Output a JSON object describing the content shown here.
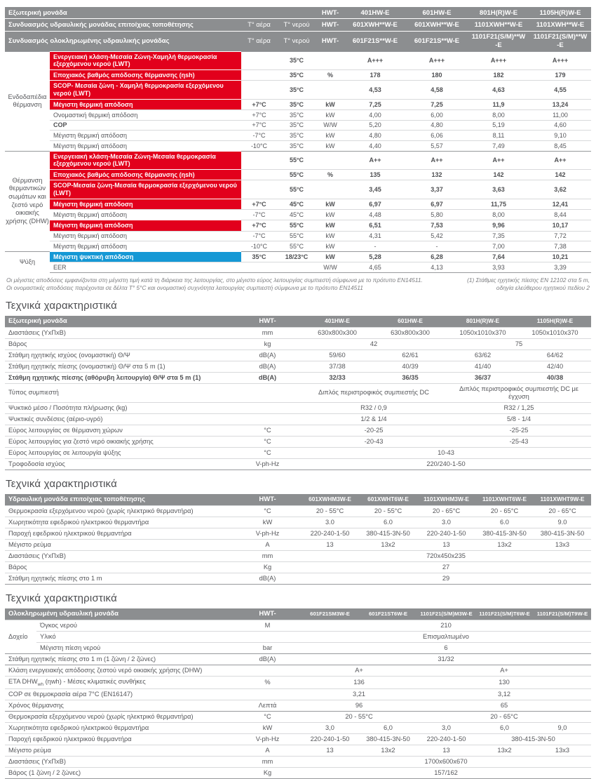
{
  "colors": {
    "red": "#e2001c",
    "blue": "#1598d5",
    "hdr": "#8c8e90"
  },
  "main_table": {
    "header_rows": [
      {
        "label": "Εξωτερική μονάδα",
        "t_air": "",
        "t_water": "",
        "brand": "HWT-",
        "models": [
          "401HW-E",
          "601HW-E",
          "801H(R)W-E",
          "1105H(R)W-E"
        ]
      },
      {
        "label": "Συνδυασμός υδραυλικής μονάδας επιτοίχιας τοποθέτησης",
        "t_air": "Τ° αέρα",
        "t_water": "Τ° νερού",
        "brand": "HWT-",
        "models": [
          "601XWH**W-E",
          "601XWH**W-E",
          "1101XWH**W-E",
          "1101XWH**W-E"
        ]
      },
      {
        "label": "Συνδυασμός ολοκληρωμένης υδραυλικής μονάδας",
        "t_air": "Τ° αέρα",
        "t_water": "Τ° νερού",
        "brand": "HWT-",
        "models": [
          "601F21S**W-E",
          "601F21S**W-E",
          "1101F21(S/M)**W-E",
          "1101F21(S/M)**W-E"
        ]
      }
    ],
    "sections": [
      {
        "name": "Ενδοδαπέδια θέρμανση",
        "rows": [
          {
            "style": "red",
            "attr": "Ενεργειακή κλάση-Μεσαία Ζώνη-Χαμηλή θερμοκρασία εξερχόμενου νερού (LWT)",
            "t_air": "",
            "t_water": "35°C",
            "unit": "",
            "values": [
              "A+++",
              "A+++",
              "A+++",
              "A+++"
            ]
          },
          {
            "style": "red",
            "attr": "Εποχιακός βαθμός απόδοσης θέρμανσης (ηsh)",
            "t_air": "",
            "t_water": "35°C",
            "unit": "%",
            "values": [
              "178",
              "180",
              "182",
              "179"
            ]
          },
          {
            "style": "red",
            "attr": "SCOP- Μεσαία ζώνη - Χαμηλή θερμοκρασία εξερχόμενου νερού (LWT)",
            "t_air": "",
            "t_water": "35°C",
            "unit": "",
            "values": [
              "4,53",
              "4,58",
              "4,63",
              "4,55"
            ]
          },
          {
            "style": "red",
            "attr": "Μέγιστη θερμική απόδοση",
            "t_air": "+7°C",
            "t_water": "35°C",
            "unit": "kW",
            "values": [
              "7,25",
              "7,25",
              "11,9",
              "13,24"
            ]
          },
          {
            "attr": "Ονομαστική θερμική απόδοση",
            "t_air": "+7°C",
            "t_water": "35°C",
            "unit": "kW",
            "values": [
              "4,00",
              "6,00",
              "8,00",
              "11,00"
            ]
          },
          {
            "attr": "COP",
            "bold": true,
            "t_air": "+7°C",
            "t_water": "35°C",
            "unit": "W/W",
            "values": [
              "5,20",
              "4,80",
              "5,19",
              "4,60"
            ]
          },
          {
            "attr": "Μέγιστη θερμική απόδοση",
            "t_air": "-7°C",
            "t_water": "35°C",
            "unit": "kW",
            "values": [
              "4,80",
              "6,06",
              "8,11",
              "9,10"
            ]
          },
          {
            "attr": "Μέγιστη θερμική απόδοση",
            "t_air": "-10°C",
            "t_water": "35°C",
            "unit": "kW",
            "values": [
              "4,40",
              "5,57",
              "7,49",
              "8,45"
            ]
          }
        ]
      },
      {
        "name": "Θέρμανση θερμαντικών σωμάτων και ζεστό νερό οικιακής χρήσης (DHW)",
        "rows": [
          {
            "style": "red",
            "attr": "Ενεργειακή κλάση-Μεσαία Ζώνη-Μεσαία θερμοκρασία εξερχόμενου νερού (LWT)",
            "t_air": "",
            "t_water": "55°C",
            "unit": "",
            "values": [
              "A++",
              "A++",
              "A++",
              "A++"
            ]
          },
          {
            "style": "red",
            "attr": "Εποχιακός βαθμός απόδοσης θέρμανσης (ηsh)",
            "t_air": "",
            "t_water": "55°C",
            "unit": "%",
            "values": [
              "135",
              "132",
              "142",
              "142"
            ]
          },
          {
            "style": "red",
            "attr": "SCOP-Μεσαία ζώνη-Μεσαία θερμοκρασία εξερχόμενου νερού (LWT)",
            "t_air": "",
            "t_water": "55°C",
            "unit": "",
            "values": [
              "3,45",
              "3,37",
              "3,63",
              "3,62"
            ]
          },
          {
            "style": "red",
            "attr": "Μέγιστη θερμική απόδοση",
            "t_air": "+7°C",
            "t_water": "45°C",
            "unit": "kW",
            "values": [
              "6,97",
              "6,97",
              "11,75",
              "12,41"
            ]
          },
          {
            "attr": "Μέγιστη θερμική απόδοση",
            "t_air": "-7°C",
            "t_water": "45°C",
            "unit": "kW",
            "values": [
              "4,48",
              "5,80",
              "8,00",
              "8,44"
            ]
          },
          {
            "style": "red",
            "attr": "Μέγιστη θερμική απόδοση",
            "t_air": "+7°C",
            "t_water": "55°C",
            "unit": "kW",
            "values": [
              "6,51",
              "7,53",
              "9,96",
              "10,17"
            ]
          },
          {
            "attr": "Μέγιστη θερμική απόδοση",
            "t_air": "-7°C",
            "t_water": "55°C",
            "unit": "kW",
            "values": [
              "4,31",
              "5,42",
              "7,35",
              "7,72"
            ]
          },
          {
            "attr": "Μέγιστη θερμική απόδοση",
            "t_air": "-10°C",
            "t_water": "55°C",
            "unit": "kW",
            "values": [
              "-",
              "-",
              "7,00",
              "7,38"
            ]
          }
        ]
      },
      {
        "name": "Ψύξη",
        "rows": [
          {
            "style": "blue",
            "attr": "Μέγιστη ψυκτική απόδοση",
            "t_air": "35°C",
            "t_water": "18/23°C",
            "unit": "kW",
            "values": [
              "5,28",
              "6,28",
              "7,64",
              "10,21"
            ]
          },
          {
            "attr": "EER",
            "t_air": "",
            "t_water": "",
            "unit": "W/W",
            "values": [
              "4,65",
              "4,13",
              "3,93",
              "3,39"
            ]
          }
        ]
      }
    ]
  },
  "footnotes": {
    "left": "Οι μέγιστες αποδόσεις εμφανίζονται στη μέγιστη τιμή κατά τη διάρκεια της λειτουργίας, στο μέγιστο εύρος λειτουργίας συμπιεστή σύμφωνα με το πρότυπο EN14511. Οι ονομαστικές αποδόσεις παρέχονται σε δέλτα Τ° 5°C και ονομαστική συχνότητα λειτουργίας συμπιεστή σύμφωνα με το πρότυπο EN14511",
    "right": "(1) Στάθμες ηχητικής πίεσης EN 12102 στα 5 m,\nοδηγία ελεύθερου ηχητικού πεδίου 2"
  },
  "tech_tables": [
    {
      "heading": "Τεχνικά χαρακτηριστικά",
      "title": "Εξωτερική μονάδα",
      "brand": "HWT-",
      "models": [
        "401HW-E",
        "601HW-E",
        "801H(R)W-E",
        "1105H(R)W-E"
      ],
      "rows": [
        {
          "label": "Διαστάσεις (ΥxΠxΒ)",
          "unit": "mm",
          "cells": [
            "630x800x300",
            "630x800x300",
            "1050x1010x370",
            "1050x1010x370"
          ]
        },
        {
          "label": "Βάρος",
          "unit": "kg",
          "cells": [
            {
              "t": "42",
              "s": 2
            },
            {
              "t": "75",
              "s": 2
            }
          ]
        },
        {
          "label": "Στάθμη ηχητικής ισχύος (ονομαστική) Θ/Ψ",
          "unit": "dB(A)",
          "cells": [
            "59/60",
            "62/61",
            "63/62",
            "64/62"
          ]
        },
        {
          "label": "Στάθμη ηχητικής πίεσης (ονομαστική) Θ/Ψ στα 5 m (1)",
          "unit": "dB(A)",
          "cells": [
            "37/38",
            "40/39",
            "41/40",
            "42/40"
          ]
        },
        {
          "label": "Στάθμη ηχητικής πίεσης (αθόρυβη λειτουργία) Θ/Ψ στα 5 m (1)",
          "unit": "dB(A)",
          "bold": true,
          "cells": [
            "32/33",
            "36/35",
            "36/37",
            "40/38"
          ]
        },
        {
          "label": "Τύπος συμπιεστή",
          "unit": "",
          "cells": [
            {
              "t": "Διπλός περιστροφικός συμπιεστής DC",
              "s": 2
            },
            {
              "t": "Διπλός περιστροφικός συμπιεστής DC με έγχυση",
              "s": 2
            }
          ]
        },
        {
          "label": "Ψυκτικό μέσο / Ποσότητα πλήρωσης (kg)",
          "unit": "",
          "cells": [
            {
              "t": "R32 / 0,9",
              "s": 2
            },
            {
              "t": "R32 / 1,25",
              "s": 2
            }
          ]
        },
        {
          "label": "Ψυκτικές συνδέσεις (αέριο-υγρό)",
          "unit": "",
          "cells": [
            {
              "t": "1/2 & 1/4",
              "s": 2
            },
            {
              "t": "5/8 - 1/4",
              "s": 2
            }
          ]
        },
        {
          "label": "Εύρος λειτουργίας σε θέρμανση χώρων",
          "unit": "°C",
          "cells": [
            {
              "t": "-20-25",
              "s": 2
            },
            {
              "t": "-25-25",
              "s": 2
            }
          ]
        },
        {
          "label": "Εύρος λειτουργίας για ζεστό νερό οικιακής χρήσης",
          "unit": "°C",
          "cells": [
            {
              "t": "-20-43",
              "s": 2
            },
            {
              "t": "-25-43",
              "s": 2
            }
          ]
        },
        {
          "label": "Εύρος λειτουργίας σε λειτουργία ψύξης",
          "unit": "°C",
          "cells": [
            {
              "t": "10-43",
              "s": 4
            }
          ]
        },
        {
          "label": "Τροφοδοσία ισχύος",
          "unit": "V-ph-Hz",
          "cells": [
            {
              "t": "220/240-1-50",
              "s": 4
            }
          ]
        }
      ]
    },
    {
      "heading": "Τεχνικά χαρακτηριστικά",
      "title": "Υδραυλική μονάδα επιτοίχιας τοποθέτησης",
      "brand": "HWT-",
      "models": [
        "601XWHM3W-E",
        "601XWHT6W-E",
        "1101XWHM3W-E",
        "1101XWHT6W-E",
        "1101XWHT9W-E"
      ],
      "rows": [
        {
          "label": "Θερμοκρασία εξερχόμενου νερού (χωρίς ηλεκτρικό θερμαντήρα)",
          "unit": "°C",
          "cells": [
            "20 - 55°C",
            "20 - 55°C",
            "20 - 65°C",
            "20 - 65°C",
            "20 - 65°C"
          ]
        },
        {
          "label": "Χωρητικότητα εφεδρικού ηλεκτρικού θερμαντήρα",
          "unit": "kW",
          "cells": [
            "3.0",
            "6.0",
            "3.0",
            "6.0",
            "9.0"
          ]
        },
        {
          "label": "Παροχή εφεδρικού ηλεκτρικού θερμαντήρα",
          "unit": "V-ph-Hz",
          "cells": [
            "220-240-1-50",
            "380-415-3N-50",
            "220-240-1-50",
            "380-415-3N-50",
            "380-415-3N-50"
          ]
        },
        {
          "label": "Μέγιστο ρεύμα",
          "unit": "A",
          "cells": [
            "13",
            "13x2",
            "13",
            "13x2",
            "13x3"
          ]
        },
        {
          "label": "Διαστάσεις (ΥxΠxΒ)",
          "unit": "mm",
          "cells": [
            {
              "t": "720x450x235",
              "s": 5
            }
          ]
        },
        {
          "label": "Βάρος",
          "unit": "Kg",
          "cells": [
            {
              "t": "27",
              "s": 5
            }
          ]
        },
        {
          "label": "Στάθμη ηχητικής πίεσης στο 1 m",
          "unit": "dB(A)",
          "cells": [
            {
              "t": "29",
              "s": 5
            }
          ]
        }
      ]
    },
    {
      "heading": "Τεχνικά χαρακτηριστικά",
      "title": "Ολοκληρωμένη υδραυλική μονάδα",
      "brand": "HWT-",
      "models": [
        "601F21SM3W-E",
        "601F21ST6W-E",
        "1101F21(S/M)M3W-E",
        "1101F21(S/M)T6W-E",
        "1101F21(S/M)T9W-E"
      ],
      "rows": [
        {
          "group": "Δοχείο",
          "group_rows": 3,
          "label": "Όγκος νερού",
          "unit": "M",
          "cells": [
            {
              "t": "210",
              "s": 5
            }
          ]
        },
        {
          "in_group": true,
          "label": "Υλικό",
          "unit": "",
          "cells": [
            {
              "t": "Επισμαλτωμένο",
              "s": 5
            }
          ]
        },
        {
          "in_group": true,
          "label": "Μέγιστη πίεση νερού",
          "unit": "bar",
          "cells": [
            {
              "t": "6",
              "s": 5
            }
          ]
        },
        {
          "divider": true,
          "label": "Στάθμη ηχητικής πίεσης στο 1 m (1 ζώνη / 2 ζώνες)",
          "unit": "dB(A)",
          "cells": [
            {
              "t": "31/32",
              "s": 5
            }
          ]
        },
        {
          "divider": true,
          "label": "Κλάση ενεργειακής απόδοσης ζεστού νερό οικιακής χρήσης (DHW)",
          "unit": "",
          "cells": [
            {
              "t": "A+",
              "s": 2
            },
            {
              "t": "A+",
              "s": 3
            }
          ]
        },
        {
          "label": "ETA DHWwh (ηwh) - Μέσες κλιματικές συνθήκες",
          "label_parts": {
            "pre": "ETA DHW",
            "sub": "wh",
            "post": " (ηwh) - Μέσες κλιματικές συνθήκες"
          },
          "unit": "%",
          "cells": [
            {
              "t": "136",
              "s": 2
            },
            {
              "t": "130",
              "s": 3
            }
          ]
        },
        {
          "label": "COP σε θερμοκρασία αέρα 7°C (EN16147)",
          "unit": "",
          "cells": [
            {
              "t": "3,21",
              "s": 2
            },
            {
              "t": "3,12",
              "s": 3
            }
          ]
        },
        {
          "label": "Χρόνος θέρμανσης",
          "unit": "Λεπτά",
          "cells": [
            {
              "t": "96",
              "s": 2
            },
            {
              "t": "65",
              "s": 3
            }
          ]
        },
        {
          "divider": true,
          "label": "Θερμοκρασία εξερχόμενου νερού (χωρίς ηλεκτρικό θερμαντήρα)",
          "unit": "°C",
          "cells": [
            {
              "t": "20 - 55°C",
              "s": 2
            },
            {
              "t": "20 - 65°C",
              "s": 3
            }
          ]
        },
        {
          "label": "Χωρητικότητα εφεδρικού ηλεκτρικού θερμαντήρα",
          "unit": "kW",
          "cells": [
            "3,0",
            "6,0",
            "3,0",
            "6,0",
            "9,0"
          ]
        },
        {
          "label": "Παροχή εφεδρικού ηλεκτρικού θερμαντήρα",
          "unit": "V-ph-Hz",
          "cells": [
            {
              "t": "220-240-1-50"
            },
            {
              "t": "380-415-3N-50"
            },
            {
              "t": "220-240-1-50"
            },
            {
              "t": "380-415-3N-50",
              "s": 2
            }
          ]
        },
        {
          "label": "Μέγιστο ρεύμα",
          "unit": "A",
          "cells": [
            "13",
            "13x2",
            "13",
            "13x2",
            "13x3"
          ]
        },
        {
          "label": "Διαστάσεις (ΥxΠxΒ)",
          "unit": "mm",
          "cells": [
            {
              "t": "1700x600x670",
              "s": 5
            }
          ]
        },
        {
          "label": "Βάρος (1 ζώνη / 2 ζώνες)",
          "unit": "Kg",
          "cells": [
            {
              "t": "157/162",
              "s": 5
            }
          ]
        }
      ]
    }
  ]
}
